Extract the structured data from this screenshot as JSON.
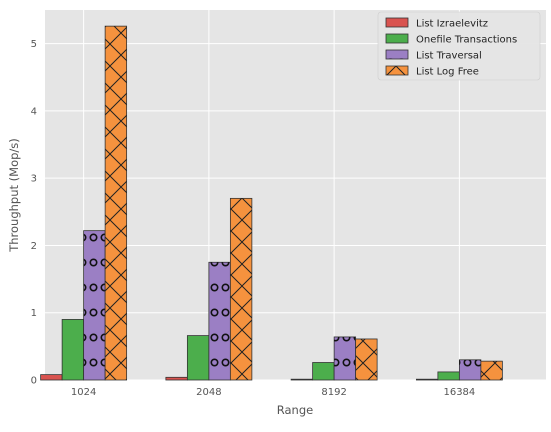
{
  "chart_data": {
    "type": "bar",
    "title": "",
    "xlabel": "Range",
    "ylabel": "Throughput (Mop/s)",
    "categories": [
      "1024",
      "2048",
      "8192",
      "16384"
    ],
    "ylim": [
      0,
      5.5
    ],
    "yticks": [
      "0",
      "1",
      "2",
      "3",
      "4",
      "5"
    ],
    "grid": true,
    "legend_position": "top-right",
    "series": [
      {
        "name": "List Izraelevitz",
        "color": "#d9534f",
        "pattern": "none",
        "values": [
          0.08,
          0.04,
          0.01,
          0.01
        ]
      },
      {
        "name": "Onefile Transactions",
        "color": "#4cae4c",
        "pattern": "none",
        "values": [
          0.9,
          0.66,
          0.26,
          0.12
        ]
      },
      {
        "name": "List Traversal",
        "color": "#9b7fc4",
        "pattern": "circles",
        "values": [
          2.22,
          1.75,
          0.64,
          0.3
        ]
      },
      {
        "name": "List Log Free",
        "color": "#f5923e",
        "pattern": "crosshatch",
        "values": [
          5.26,
          2.7,
          0.61,
          0.28
        ]
      }
    ]
  }
}
